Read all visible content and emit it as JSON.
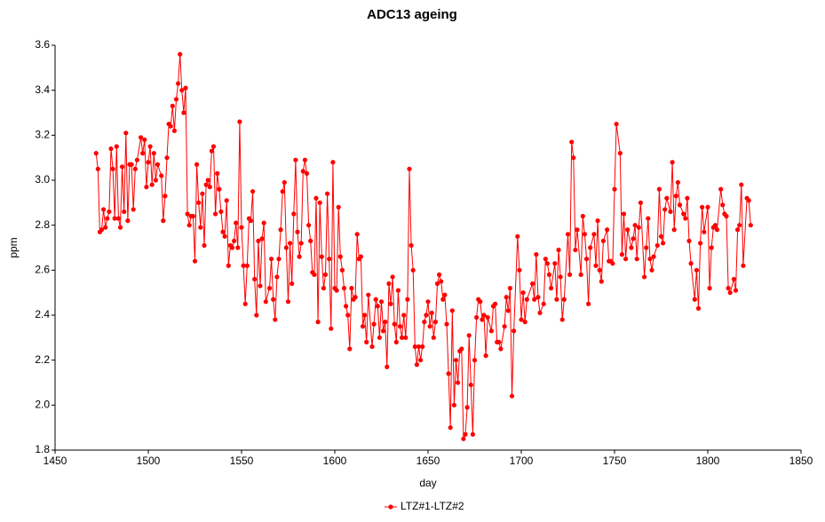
{
  "chart_data": {
    "type": "line",
    "title": "ADC13 ageing",
    "x_label": "day",
    "y_label": "ppm",
    "xlim": [
      1450,
      1850
    ],
    "xticks": [
      1450,
      1500,
      1550,
      1600,
      1650,
      1700,
      1750,
      1800,
      1850
    ],
    "ylim": [
      1.8,
      3.6
    ],
    "yticks": [
      1.8,
      {
        "value": 2,
        "label": "2.0"
      },
      2.2,
      2.4,
      2.6,
      2.8,
      {
        "value": 3,
        "label": "3.0"
      },
      3.2,
      3.4,
      3.6
    ],
    "legend": "bottom",
    "grid": false,
    "x": [
      1472,
      1473,
      1474,
      1475,
      1476,
      1477,
      1478,
      1479,
      1480,
      1481,
      1482,
      1483,
      1484,
      1485,
      1486,
      1487,
      1488,
      1489,
      1490,
      1491,
      1492,
      1493,
      1494,
      1496,
      1497,
      1498,
      1499,
      1500,
      1501,
      1502,
      1503,
      1504,
      1505,
      1507,
      1508,
      1509,
      1510,
      1511,
      1512,
      1513,
      1514,
      1515,
      1516,
      1517,
      1518,
      1519,
      1520,
      1521,
      1522,
      1523,
      1524,
      1525,
      1526,
      1527,
      1528,
      1529,
      1530,
      1531,
      1532,
      1533,
      1534,
      1535,
      1536,
      1537,
      1538,
      1539,
      1540,
      1541,
      1542,
      1543,
      1544,
      1545,
      1546,
      1547,
      1548,
      1549,
      1550,
      1551,
      1552,
      1553,
      1554,
      1555,
      1556,
      1557,
      1558,
      1559,
      1560,
      1561,
      1562,
      1563,
      1565,
      1566,
      1567,
      1568,
      1569,
      1570,
      1571,
      1572,
      1573,
      1574,
      1575,
      1576,
      1577,
      1578,
      1579,
      1580,
      1581,
      1582,
      1583,
      1584,
      1585,
      1586,
      1587,
      1588,
      1589,
      1590,
      1591,
      1592,
      1593,
      1594,
      1595,
      1596,
      1597,
      1598,
      1599,
      1600,
      1601,
      1602,
      1603,
      1604,
      1605,
      1606,
      1607,
      1608,
      1609,
      1610,
      1611,
      1612,
      1613,
      1614,
      1615,
      1616,
      1617,
      1618,
      1620,
      1621,
      1622,
      1623,
      1624,
      1625,
      1626,
      1627,
      1628,
      1629,
      1630,
      1631,
      1632,
      1633,
      1634,
      1635,
      1636,
      1637,
      1638,
      1639,
      1640,
      1641,
      1642,
      1643,
      1644,
      1645,
      1646,
      1647,
      1648,
      1649,
      1650,
      1651,
      1652,
      1653,
      1654,
      1655,
      1656,
      1657,
      1658,
      1659,
      1660,
      1661,
      1662,
      1663,
      1664,
      1665,
      1666,
      1667,
      1668,
      1669,
      1670,
      1671,
      1672,
      1673,
      1674,
      1675,
      1676,
      1677,
      1678,
      1679,
      1680,
      1681,
      1682,
      1684,
      1685,
      1686,
      1687,
      1688,
      1689,
      1691,
      1692,
      1693,
      1694,
      1695,
      1696,
      1698,
      1699,
      1700,
      1701,
      1702,
      1703,
      1706,
      1707,
      1708,
      1709,
      1710,
      1712,
      1713,
      1714,
      1715,
      1716,
      1718,
      1719,
      1720,
      1721,
      1722,
      1723,
      1725,
      1726,
      1727,
      1728,
      1729,
      1730,
      1732,
      1733,
      1734,
      1735,
      1736,
      1737,
      1739,
      1740,
      1741,
      1742,
      1743,
      1744,
      1746,
      1747,
      1748,
      1749,
      1750,
      1751,
      1753,
      1754,
      1755,
      1756,
      1757,
      1759,
      1760,
      1761,
      1762,
      1763,
      1764,
      1766,
      1767,
      1768,
      1769,
      1770,
      1771,
      1773,
      1774,
      1775,
      1776,
      1777,
      1778,
      1780,
      1781,
      1782,
      1783,
      1784,
      1785,
      1787,
      1788,
      1789,
      1790,
      1791,
      1793,
      1794,
      1795,
      1796,
      1797,
      1798,
      1800,
      1801,
      1802,
      1803,
      1804,
      1805,
      1807,
      1808,
      1809,
      1810,
      1811,
      1812,
      1814,
      1815,
      1816,
      1817,
      1818,
      1819,
      1821,
      1822,
      1823
    ],
    "series": [
      {
        "name": "LTZ#1-LTZ#2",
        "color": "#ff0000",
        "values": [
          3.12,
          3.05,
          2.77,
          2.78,
          2.87,
          2.79,
          2.83,
          2.86,
          3.14,
          3.05,
          2.83,
          3.15,
          2.83,
          2.79,
          3.06,
          2.86,
          3.21,
          2.82,
          3.07,
          3.07,
          2.87,
          3.05,
          3.09,
          3.19,
          3.12,
          3.18,
          2.97,
          3.08,
          3.15,
          2.98,
          3.12,
          3.0,
          3.07,
          3.02,
          2.82,
          2.93,
          3.1,
          3.25,
          3.24,
          3.33,
          3.22,
          3.36,
          3.43,
          3.56,
          3.4,
          3.3,
          3.41,
          2.85,
          2.8,
          2.84,
          2.84,
          2.64,
          3.07,
          2.9,
          2.79,
          2.94,
          2.71,
          2.98,
          3.0,
          2.97,
          3.13,
          3.15,
          2.85,
          3.03,
          2.96,
          2.86,
          2.77,
          2.75,
          2.91,
          2.62,
          2.71,
          2.7,
          2.73,
          2.81,
          2.7,
          3.26,
          2.79,
          2.62,
          2.45,
          2.62,
          2.83,
          2.82,
          2.95,
          2.56,
          2.4,
          2.73,
          2.53,
          2.74,
          2.81,
          2.46,
          2.52,
          2.65,
          2.47,
          2.38,
          2.57,
          2.65,
          2.78,
          2.95,
          2.99,
          2.7,
          2.46,
          2.72,
          2.54,
          2.85,
          3.09,
          2.77,
          2.66,
          2.72,
          3.04,
          3.09,
          3.03,
          2.8,
          2.73,
          2.59,
          2.58,
          2.92,
          2.37,
          2.9,
          2.66,
          2.52,
          2.58,
          2.94,
          2.65,
          2.34,
          3.08,
          2.52,
          2.51,
          2.88,
          2.66,
          2.6,
          2.52,
          2.44,
          2.4,
          2.25,
          2.52,
          2.47,
          2.48,
          2.76,
          2.65,
          2.66,
          2.35,
          2.4,
          2.28,
          2.49,
          2.26,
          2.36,
          2.47,
          2.44,
          2.3,
          2.46,
          2.33,
          2.37,
          2.17,
          2.54,
          2.45,
          2.57,
          2.36,
          2.28,
          2.51,
          2.35,
          2.3,
          2.4,
          2.3,
          2.47,
          3.05,
          2.71,
          2.6,
          2.26,
          2.18,
          2.26,
          2.2,
          2.26,
          2.37,
          2.4,
          2.46,
          2.35,
          2.41,
          2.3,
          2.37,
          2.54,
          2.58,
          2.55,
          2.47,
          2.49,
          2.36,
          2.14,
          1.9,
          2.42,
          2.0,
          2.2,
          2.1,
          2.24,
          2.25,
          1.85,
          1.87,
          1.99,
          2.31,
          2.09,
          1.87,
          2.2,
          2.39,
          2.47,
          2.46,
          2.38,
          2.4,
          2.22,
          2.39,
          2.33,
          2.44,
          2.45,
          2.28,
          2.28,
          2.25,
          2.35,
          2.48,
          2.42,
          2.52,
          2.04,
          2.33,
          2.75,
          2.6,
          2.38,
          2.5,
          2.37,
          2.47,
          2.54,
          2.47,
          2.67,
          2.48,
          2.41,
          2.45,
          2.65,
          2.63,
          2.58,
          2.52,
          2.63,
          2.47,
          2.69,
          2.57,
          2.38,
          2.47,
          2.76,
          2.58,
          3.17,
          3.1,
          2.69,
          2.78,
          2.58,
          2.84,
          2.76,
          2.65,
          2.45,
          2.7,
          2.76,
          2.62,
          2.82,
          2.6,
          2.55,
          2.73,
          2.78,
          2.64,
          2.64,
          2.63,
          2.96,
          3.25,
          3.12,
          2.67,
          2.85,
          2.65,
          2.78,
          2.7,
          2.74,
          2.8,
          2.65,
          2.79,
          2.9,
          2.57,
          2.7,
          2.83,
          2.65,
          2.6,
          2.66,
          2.71,
          2.96,
          2.75,
          2.72,
          2.87,
          2.92,
          2.86,
          3.08,
          2.78,
          2.93,
          2.99,
          2.89,
          2.85,
          2.83,
          2.92,
          2.73,
          2.63,
          2.47,
          2.6,
          2.43,
          2.72,
          2.88,
          2.77,
          2.88,
          2.52,
          2.7,
          2.79,
          2.8,
          2.78,
          2.96,
          2.89,
          2.85,
          2.84,
          2.52,
          2.5,
          2.56,
          2.51,
          2.78,
          2.8,
          2.98,
          2.62,
          2.92,
          2.91,
          2.8
        ]
      }
    ]
  }
}
